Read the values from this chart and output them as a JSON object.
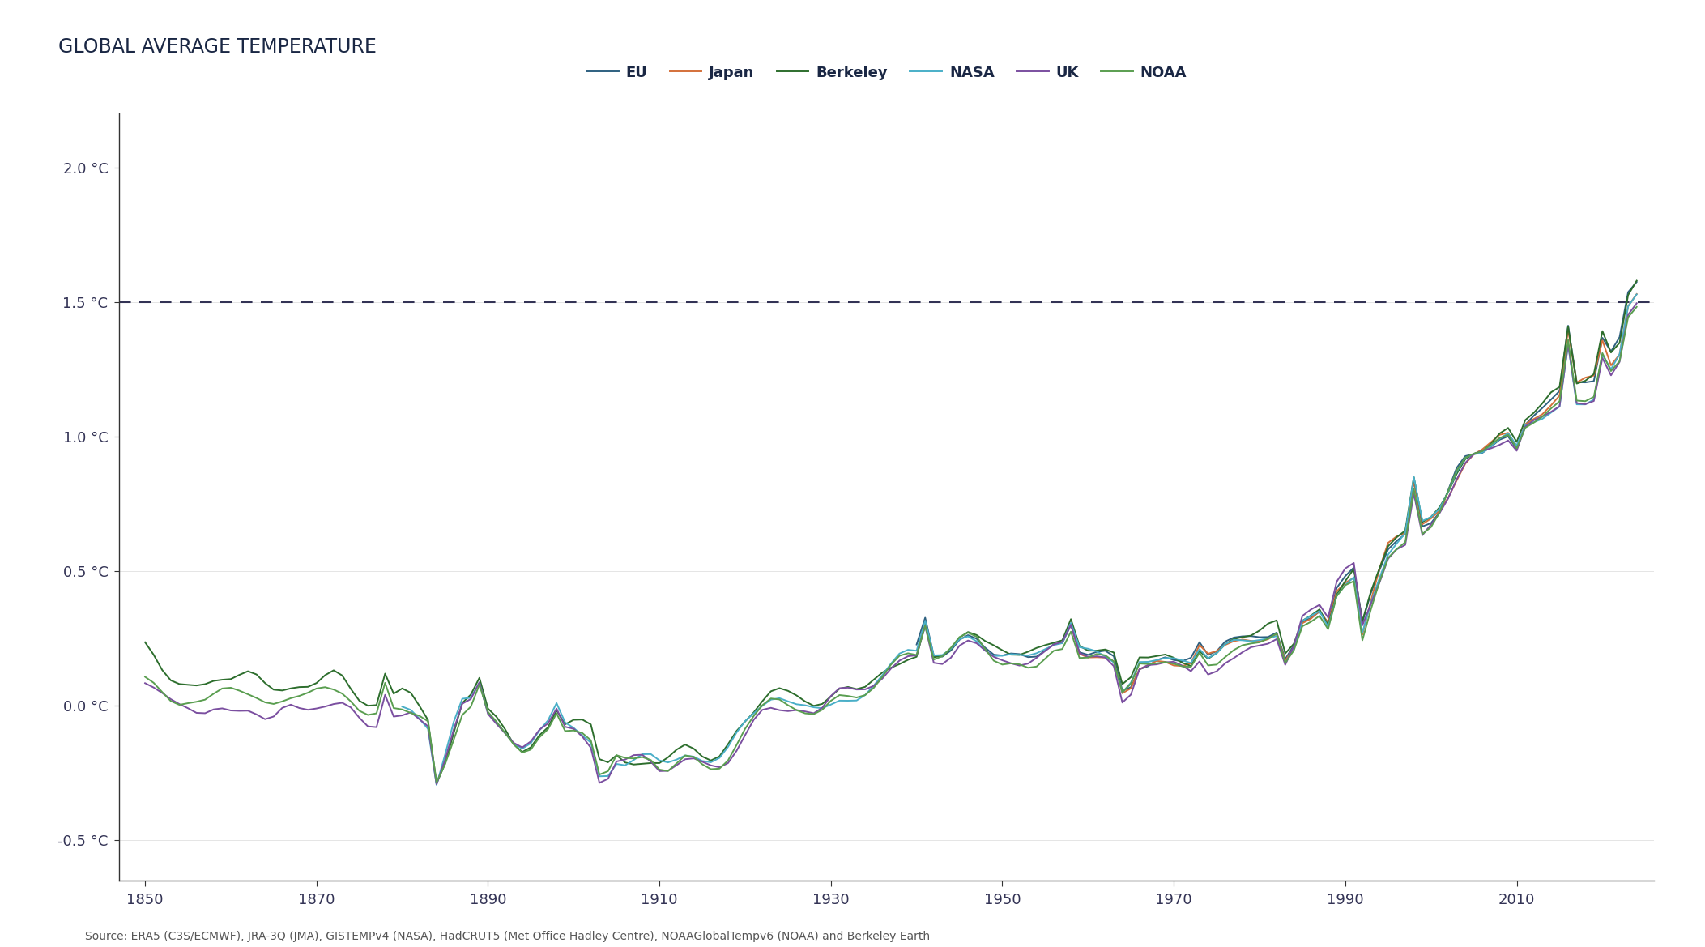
{
  "title": "GLOBAL AVERAGE TEMPERATURE",
  "source": "Source: ERA5 (C3S/ECMWF), JRA-3Q (JMA), GISTEMPv4 (NASA), HadCRUT5 (Met Office Hadley Centre), NOAAGlobalTempv6 (NOAA) and Berkeley Earth",
  "y_label_ticks": [
    "-0.5 °C",
    "0.0 °C",
    "0.5 °C",
    "1.0 °C",
    "1.5 °C",
    "2.0 °C"
  ],
  "y_ticks": [
    -0.5,
    0.0,
    0.5,
    1.0,
    1.5,
    2.0
  ],
  "x_ticks": [
    1850,
    1870,
    1890,
    1910,
    1930,
    1950,
    1970,
    1990,
    2010
  ],
  "threshold": 1.5,
  "colors": {
    "EU": "#2e6080",
    "Japan": "#d4703a",
    "Berkeley": "#2d6e2d",
    "NASA": "#4aafc8",
    "UK": "#7b4fa0",
    "NOAA": "#5a9e50"
  },
  "background_color": "#ffffff",
  "title_color": "#1a2744",
  "dashed_line_color": "#333355",
  "axis_color": "#333355",
  "source_color": "#555555",
  "title_fontsize": 17,
  "legend_fontsize": 13,
  "tick_fontsize": 13,
  "source_fontsize": 10,
  "linewidth": 1.4,
  "ylim": [
    -0.65,
    2.2
  ],
  "xlim": [
    1847,
    2026
  ]
}
